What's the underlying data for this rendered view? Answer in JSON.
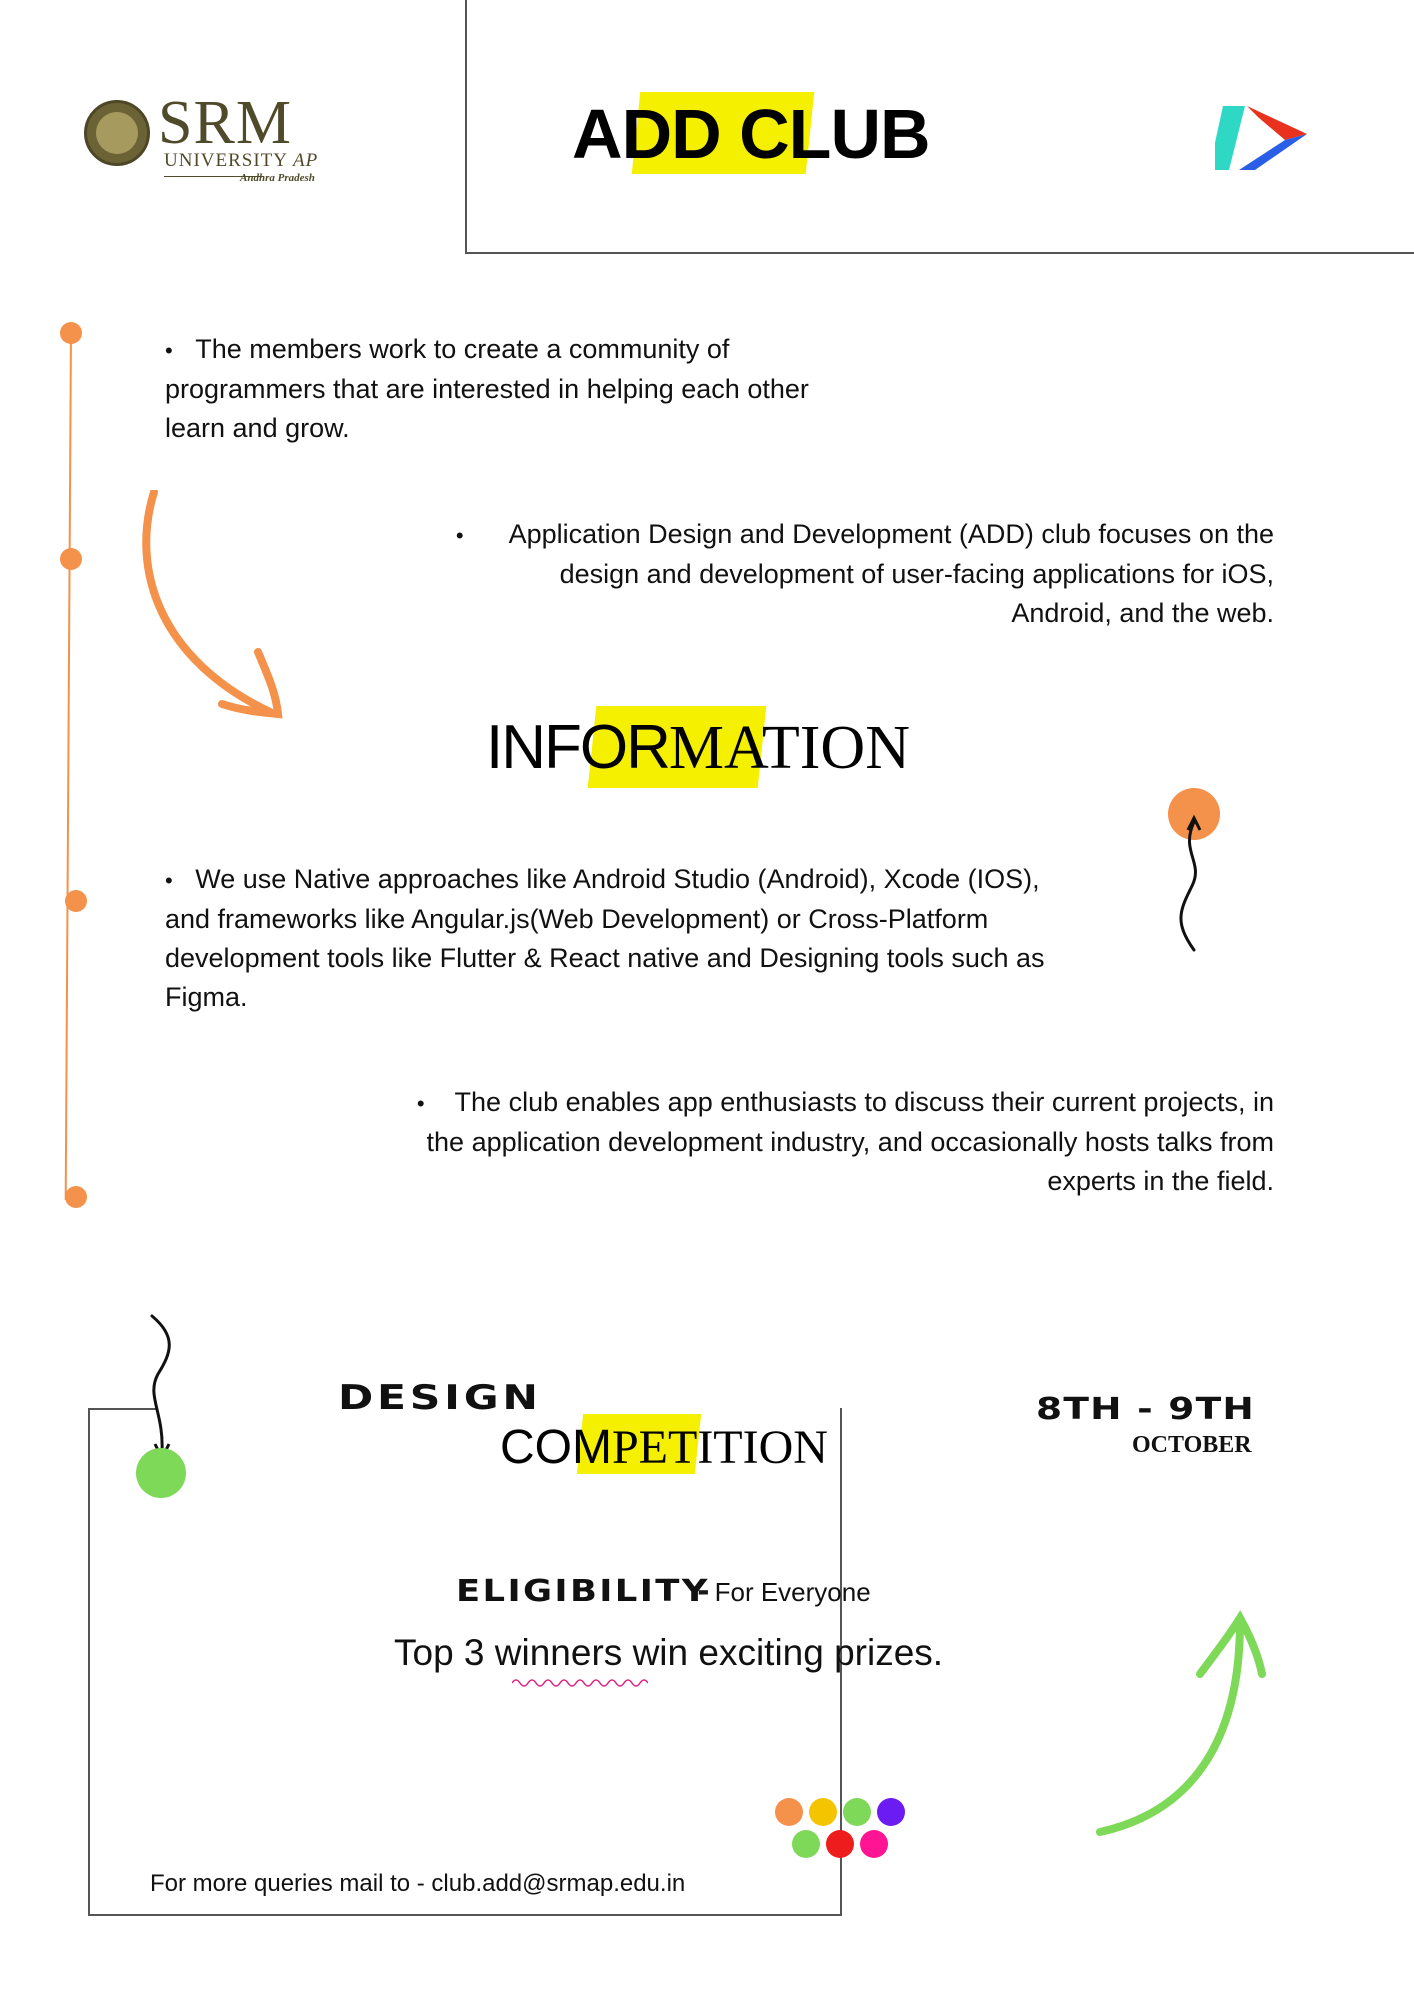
{
  "header": {
    "logo": {
      "name": "SRM",
      "subtitle": "UNIVERSITY",
      "subtitle_suffix": "AP",
      "state": "Andhra Pradesh"
    },
    "title_plain_start": "A",
    "title_highlight": "DD CL",
    "title_plain_end": "UB"
  },
  "points": [
    {
      "text": "The members work to create a community of programmers that are interested in helping each other learn and grow."
    },
    {
      "text": "Application Design and Development (ADD) club focuses on the design and development of user-facing applications for iOS, Android, and the web."
    },
    {
      "text": "We use Native approaches like Android Studio (Android), Xcode (IOS), and frameworks like Angular.js(Web Development) or Cross-Platform development tools like Flutter & React native and Designing tools such as Figma."
    },
    {
      "text": "The club enables app enthusiasts to discuss their current projects, in the application development industry, and occasionally hosts talks from experts in the field."
    }
  ],
  "bullet_char": "•",
  "info_heading": {
    "part1": "INFOR",
    "part2": "MATION"
  },
  "competition": {
    "label_top": "DESIGN",
    "title_part1": "COM",
    "title_part2": "PETITION",
    "date_range": "8TH - 9TH",
    "date_month": "OCTOBER",
    "eligibility_label": "ELIGIBILITY",
    "eligibility_dash": "-",
    "eligibility_value": "For Everyone",
    "prize_text": "Top 3 winners win exciting prizes.",
    "query_text": "For more queries mail to - club.add@srmap.edu.in"
  },
  "colors": {
    "highlight": "#f5ef00",
    "orange": "#f4914b",
    "green": "#7dd957",
    "dots": [
      "#f4914b",
      "#f5c400",
      "#7dd957",
      "#6a1cf2",
      "#7dd957",
      "#ee1c1c",
      "#ff1493"
    ]
  },
  "icons": [
    "university-seal-icon",
    "brand-mark-icon",
    "curved-arrow-icon",
    "squiggle-arrow-icon"
  ]
}
